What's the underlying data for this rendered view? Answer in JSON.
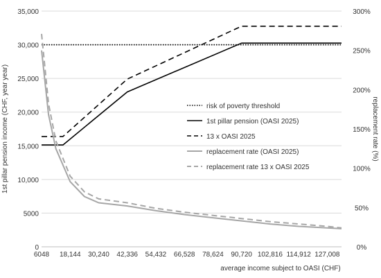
{
  "chart_data": {
    "type": "line",
    "title": "",
    "xlabel": "average income subject to OASI (CHF)",
    "ylabel_left": "1st pillar pension income (CHF, year year)",
    "ylabel_right": "replacement rate (%)",
    "x_ticks": [
      "6048",
      "18,144",
      "30,240",
      "42,336",
      "54,432",
      "66,528",
      "78,624",
      "90,720",
      "102,816",
      "114,912",
      "127,008"
    ],
    "x_range": [
      6048,
      133056
    ],
    "y_left_ticks": [
      "0",
      "5000",
      "10,000",
      "15,000",
      "20,000",
      "25,000",
      "30,000",
      "35,000"
    ],
    "y_left_range": [
      0,
      35000
    ],
    "y_right_ticks": [
      "0%",
      "50%",
      "100%",
      "150%",
      "200%",
      "250%",
      "300%"
    ],
    "y_right_range": [
      0,
      300
    ],
    "grid": "horizontal",
    "legend_position": "center-right",
    "series": [
      {
        "name": "risk of poverty threshold",
        "axis": "left",
        "style": "dotted",
        "color": "#000000",
        "points": [
          [
            6048,
            30000
          ],
          [
            133056,
            30000
          ]
        ]
      },
      {
        "name": "1st pillar pension (OASI 2025)",
        "axis": "left",
        "style": "solid",
        "color": "#000000",
        "points": [
          [
            6048,
            15120
          ],
          [
            15120,
            15120
          ],
          [
            42336,
            23000
          ],
          [
            90720,
            30240
          ],
          [
            133056,
            30240
          ]
        ]
      },
      {
        "name": "13 x OASI 2025",
        "axis": "left",
        "style": "dashed",
        "color": "#000000",
        "points": [
          [
            6048,
            16380
          ],
          [
            15120,
            16380
          ],
          [
            42336,
            24900
          ],
          [
            90720,
            32760
          ],
          [
            133056,
            32760
          ]
        ]
      },
      {
        "name": "replacement rate (OASI 2025)",
        "axis": "right",
        "style": "solid",
        "color": "#a6a6a6",
        "points": [
          [
            6048,
            250
          ],
          [
            9000,
            168
          ],
          [
            12096,
            125
          ],
          [
            18144,
            83
          ],
          [
            24192,
            64
          ],
          [
            30240,
            56
          ],
          [
            42336,
            52
          ],
          [
            54432,
            46
          ],
          [
            66528,
            41
          ],
          [
            78624,
            37
          ],
          [
            90720,
            33
          ],
          [
            102816,
            29
          ],
          [
            114912,
            26
          ],
          [
            127008,
            24
          ],
          [
            133056,
            23
          ]
        ]
      },
      {
        "name": "replacement rate 13 x OASI 2025",
        "axis": "right",
        "style": "dashed",
        "color": "#a6a6a6",
        "points": [
          [
            6048,
            271
          ],
          [
            9000,
            182
          ],
          [
            12096,
            135
          ],
          [
            18144,
            90
          ],
          [
            24192,
            70
          ],
          [
            30240,
            61
          ],
          [
            42336,
            56
          ],
          [
            54432,
            49
          ],
          [
            66528,
            44
          ],
          [
            78624,
            40
          ],
          [
            90720,
            36
          ],
          [
            102816,
            32
          ],
          [
            114912,
            29
          ],
          [
            127008,
            26
          ],
          [
            133056,
            24
          ]
        ]
      }
    ]
  }
}
